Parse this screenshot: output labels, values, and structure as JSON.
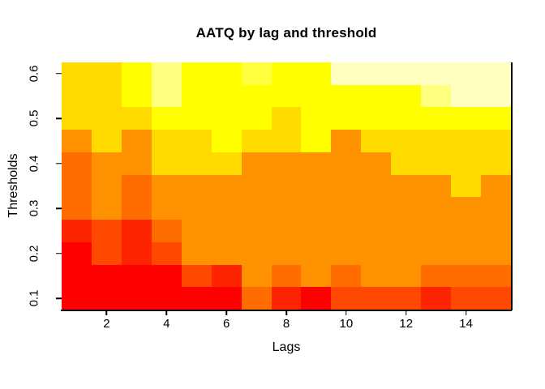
{
  "title": "AATQ by lag and threshold",
  "axes": {
    "x": {
      "label": "Lags",
      "ticks": [
        "2",
        "4",
        "6",
        "8",
        "10",
        "12",
        "14"
      ],
      "tick_values": [
        2,
        4,
        6,
        8,
        10,
        12,
        14
      ]
    },
    "y": {
      "label": "Thresholds",
      "ticks": [
        "0.1",
        "0.2",
        "0.3",
        "0.4",
        "0.5",
        "0.6"
      ],
      "tick_values": [
        0.1,
        0.2,
        0.3,
        0.4,
        0.5,
        0.6
      ]
    }
  },
  "chart_data": {
    "type": "heatmap",
    "title": "AATQ by lag and threshold",
    "xlabel": "Lags",
    "ylabel": "Thresholds",
    "x_categories": [
      1,
      2,
      3,
      4,
      5,
      6,
      7,
      8,
      9,
      10,
      11,
      12,
      13,
      14,
      15
    ],
    "x_range": [
      0.5,
      15.5
    ],
    "y_range": [
      0.075,
      0.625
    ],
    "rows_top_to_bottom": [
      0.6,
      0.55,
      0.5,
      0.45,
      0.4,
      0.35,
      0.3,
      0.25,
      0.2,
      0.15,
      0.1
    ],
    "palette_heat_colors": [
      "#FF0000",
      "#FF2400",
      "#FF4900",
      "#FF6D00",
      "#FF9200",
      "#FFB600",
      "#FFDB00",
      "#FFFF00",
      "#FFFF40",
      "#FFFF80",
      "#FFFFBF",
      "#FFFFFF"
    ],
    "legend": "none",
    "grid": false,
    "cell_colors_by_row": [
      {
        "threshold": 0.6,
        "colors": [
          "#FFDB00",
          "#FFDB00",
          "#FFFF00",
          "#FFFF80",
          "#FFFF00",
          "#FFFF00",
          "#FFFF40",
          "#FFFF00",
          "#FFFF00",
          "#FFFFBF",
          "#FFFFBF",
          "#FFFFBF",
          "#FFFFBF",
          "#FFFFBF",
          "#FFFFBF"
        ]
      },
      {
        "threshold": 0.55,
        "colors": [
          "#FFDB00",
          "#FFDB00",
          "#FFFF00",
          "#FFFF80",
          "#FFFF00",
          "#FFFF00",
          "#FFFF00",
          "#FFFF00",
          "#FFFF00",
          "#FFFF00",
          "#FFFF00",
          "#FFFF00",
          "#FFFF80",
          "#FFFFBF",
          "#FFFFBF"
        ]
      },
      {
        "threshold": 0.5,
        "colors": [
          "#FFDB00",
          "#FFDB00",
          "#FFDB00",
          "#FFFF00",
          "#FFFF00",
          "#FFFF00",
          "#FFFF00",
          "#FFDB00",
          "#FFFF00",
          "#FFFF00",
          "#FFFF00",
          "#FFFF00",
          "#FFFF00",
          "#FFFF00",
          "#FFFF00"
        ]
      },
      {
        "threshold": 0.45,
        "colors": [
          "#FF9200",
          "#FFDB00",
          "#FF9200",
          "#FFDB00",
          "#FFDB00",
          "#FFFF00",
          "#FFDB00",
          "#FFDB00",
          "#FFFF00",
          "#FF9200",
          "#FFDB00",
          "#FFDB00",
          "#FFDB00",
          "#FFDB00",
          "#FFDB00"
        ]
      },
      {
        "threshold": 0.4,
        "colors": [
          "#FF6D00",
          "#FF9200",
          "#FF9200",
          "#FFDB00",
          "#FFDB00",
          "#FFDB00",
          "#FF9200",
          "#FF9200",
          "#FF9200",
          "#FF9200",
          "#FF9200",
          "#FFDB00",
          "#FFDB00",
          "#FFDB00",
          "#FFDB00"
        ]
      },
      {
        "threshold": 0.35,
        "colors": [
          "#FF6D00",
          "#FF9200",
          "#FF6D00",
          "#FF9200",
          "#FF9200",
          "#FF9200",
          "#FF9200",
          "#FF9200",
          "#FF9200",
          "#FF9200",
          "#FF9200",
          "#FF9200",
          "#FF9200",
          "#FFDB00",
          "#FF9200"
        ]
      },
      {
        "threshold": 0.3,
        "colors": [
          "#FF6D00",
          "#FF9200",
          "#FF6D00",
          "#FF9200",
          "#FF9200",
          "#FF9200",
          "#FF9200",
          "#FF9200",
          "#FF9200",
          "#FF9200",
          "#FF9200",
          "#FF9200",
          "#FF9200",
          "#FF9200",
          "#FF9200"
        ]
      },
      {
        "threshold": 0.25,
        "colors": [
          "#FF2400",
          "#FF4900",
          "#FF2400",
          "#FF6D00",
          "#FF9200",
          "#FF9200",
          "#FF9200",
          "#FF9200",
          "#FF9200",
          "#FF9200",
          "#FF9200",
          "#FF9200",
          "#FF9200",
          "#FF9200",
          "#FF9200"
        ]
      },
      {
        "threshold": 0.2,
        "colors": [
          "#FF0000",
          "#FF4900",
          "#FF2400",
          "#FF4900",
          "#FF9200",
          "#FF9200",
          "#FF9200",
          "#FF9200",
          "#FF9200",
          "#FF9200",
          "#FF9200",
          "#FF9200",
          "#FF9200",
          "#FF9200",
          "#FF9200"
        ]
      },
      {
        "threshold": 0.15,
        "colors": [
          "#FF0000",
          "#FF0000",
          "#FF0000",
          "#FF0000",
          "#FF4900",
          "#FF2400",
          "#FF9200",
          "#FF6D00",
          "#FF9200",
          "#FF6D00",
          "#FF9200",
          "#FF9200",
          "#FF6D00",
          "#FF6D00",
          "#FF6D00"
        ]
      },
      {
        "threshold": 0.1,
        "colors": [
          "#FF0000",
          "#FF0000",
          "#FF0000",
          "#FF0000",
          "#FF0000",
          "#FF0000",
          "#FF6D00",
          "#FF2400",
          "#FF0000",
          "#FF4900",
          "#FF4900",
          "#FF4900",
          "#FF2400",
          "#FF4900",
          "#FF4900"
        ]
      }
    ]
  }
}
